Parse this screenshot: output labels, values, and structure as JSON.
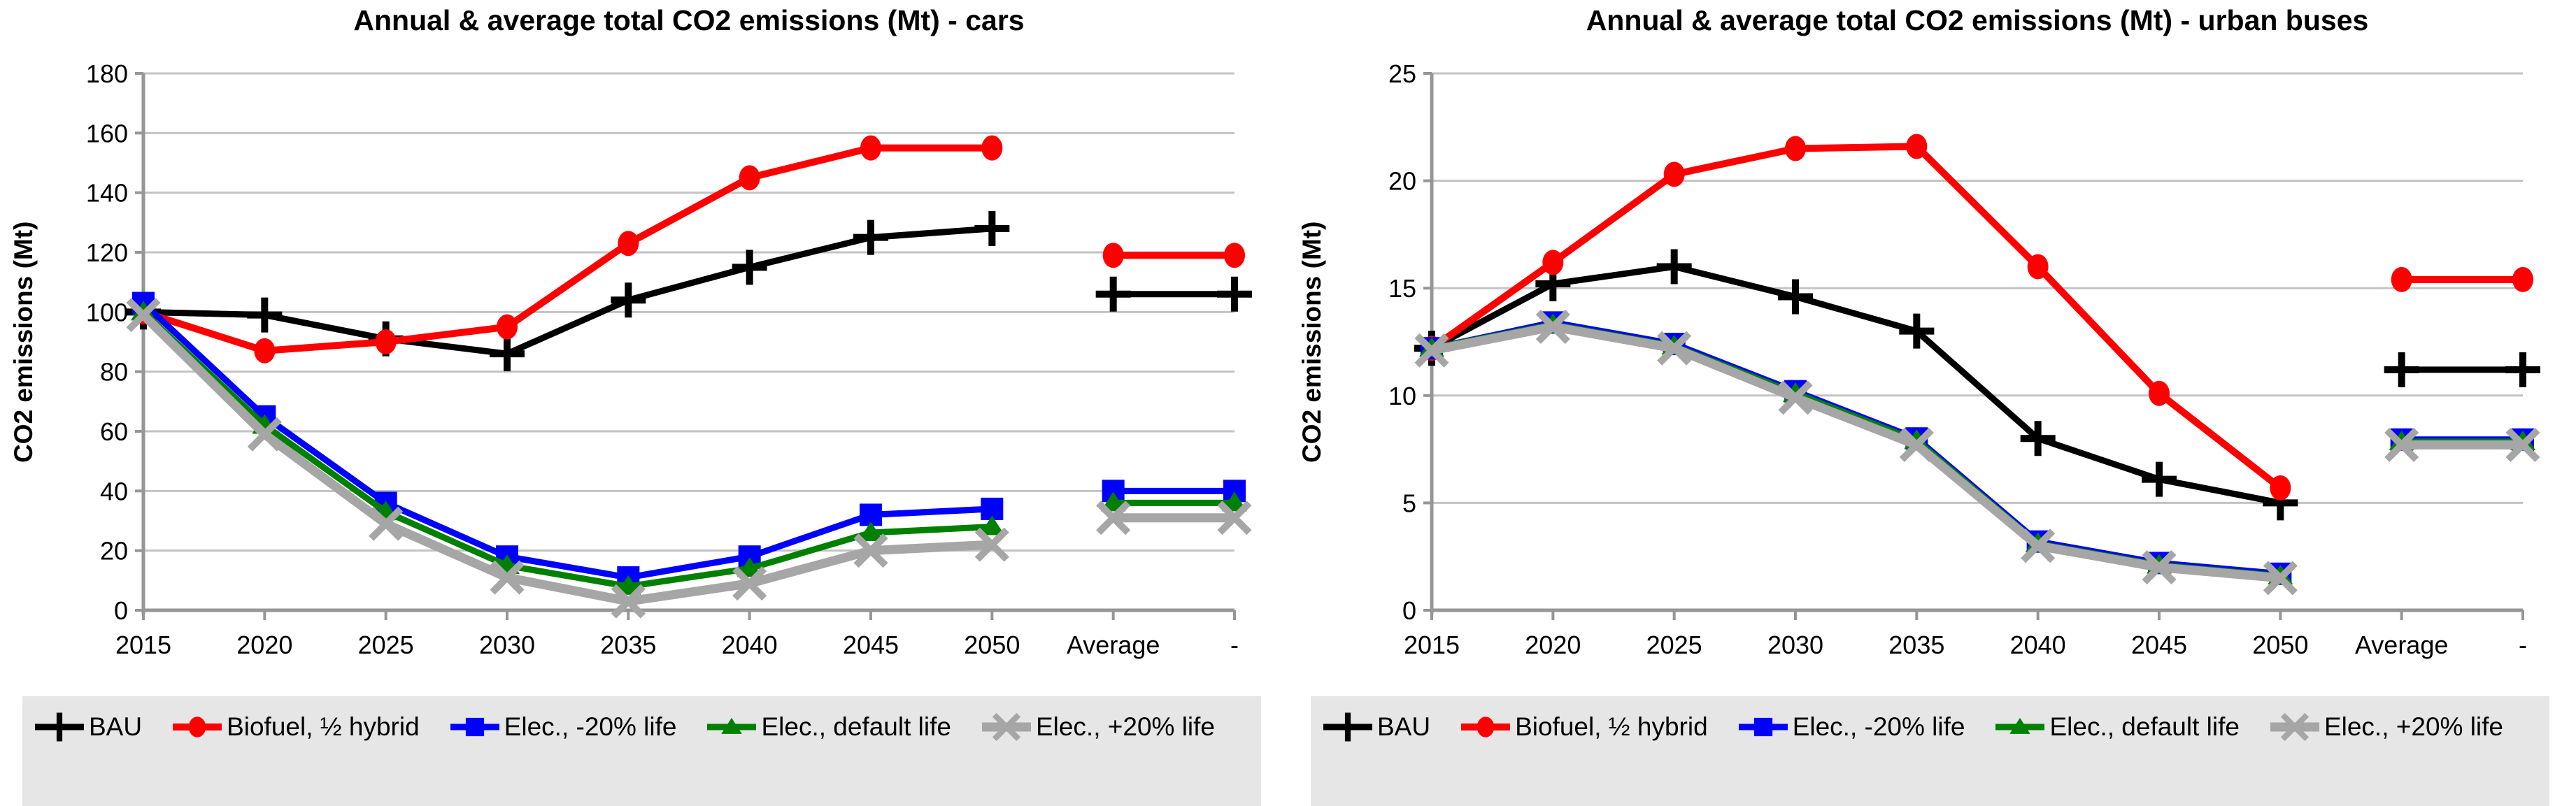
{
  "page": {
    "background": "#FFFFFF",
    "legend_background": "#E6E6E6"
  },
  "chart_data": [
    {
      "type": "line",
      "title": "Annual & average total CO2 emissions (Mt) - cars",
      "y_axis_title": "CO2 emissions (Mt)",
      "categories": [
        "2015",
        "2020",
        "2025",
        "2030",
        "2035",
        "2040",
        "2045",
        "2050",
        "Average",
        "-"
      ],
      "ylim": [
        0,
        180
      ],
      "y_ticks": [
        0,
        20,
        40,
        60,
        80,
        100,
        120,
        140,
        160,
        180
      ],
      "grid": true,
      "legend_position": "bottom",
      "series": [
        {
          "name": "BAU",
          "color": "#000000",
          "marker": "plus",
          "line_width": 9,
          "values": [
            100,
            99,
            91,
            86,
            104,
            115,
            125,
            128
          ],
          "average": 106
        },
        {
          "name": "Biofuel, ½ hybrid",
          "color": "#FF0000",
          "marker": "dot",
          "line_width": 10,
          "values": [
            100,
            87,
            90,
            95,
            123,
            145,
            155,
            155
          ],
          "average": 119
        },
        {
          "name": "Elec., -20% life",
          "color": "#0000FF",
          "marker": "square",
          "line_width": 9,
          "values": [
            103,
            65,
            36,
            18,
            11,
            18,
            32,
            34
          ],
          "average": 40
        },
        {
          "name": "Elec., default life",
          "color": "#008000",
          "marker": "triangle",
          "line_width": 9,
          "values": [
            100,
            62,
            33,
            15,
            8,
            14,
            26,
            28
          ],
          "average": 36
        },
        {
          "name": "Elec., +20% life",
          "color": "#A6A6A6",
          "marker": "x",
          "line_width": 13,
          "values": [
            99,
            59,
            29,
            11,
            3,
            9,
            20,
            22
          ],
          "average": 31
        }
      ]
    },
    {
      "type": "line",
      "title": "Annual & average total CO2 emissions (Mt) - urban buses",
      "y_axis_title": "CO2 emissions (Mt)",
      "categories": [
        "2015",
        "2020",
        "2025",
        "2030",
        "2035",
        "2040",
        "2045",
        "2050",
        "Average",
        "-"
      ],
      "ylim": [
        0,
        25
      ],
      "y_ticks": [
        0,
        5,
        10,
        15,
        20,
        25
      ],
      "grid": true,
      "legend_position": "bottom",
      "series": [
        {
          "name": "BAU",
          "color": "#000000",
          "marker": "plus",
          "line_width": 9,
          "values": [
            12.2,
            15.2,
            16.0,
            14.6,
            13.0,
            8.0,
            6.1,
            5.0
          ],
          "average": 11.2
        },
        {
          "name": "Biofuel, ½ hybrid",
          "color": "#FF0000",
          "marker": "dot",
          "line_width": 10,
          "values": [
            12.2,
            16.2,
            20.3,
            21.5,
            21.6,
            16.0,
            10.1,
            5.7
          ],
          "average": 15.4
        },
        {
          "name": "Elec., -20% life",
          "color": "#0000FF",
          "marker": "square",
          "line_width": 9,
          "values": [
            12.2,
            13.4,
            12.4,
            10.2,
            8.0,
            3.2,
            2.2,
            1.7
          ],
          "average": 7.95
        },
        {
          "name": "Elec., default life",
          "color": "#008000",
          "marker": "triangle",
          "line_width": 9,
          "values": [
            12.2,
            13.3,
            12.3,
            10.1,
            7.9,
            3.1,
            2.1,
            1.6
          ],
          "average": 7.85
        },
        {
          "name": "Elec., +20% life",
          "color": "#A6A6A6",
          "marker": "x",
          "line_width": 13,
          "values": [
            12.1,
            13.2,
            12.2,
            9.9,
            7.7,
            3.0,
            2.0,
            1.5
          ],
          "average": 7.7
        }
      ]
    }
  ],
  "axis_style": {
    "axis_color": "#969696",
    "grid_color": "#C3C3C3"
  }
}
